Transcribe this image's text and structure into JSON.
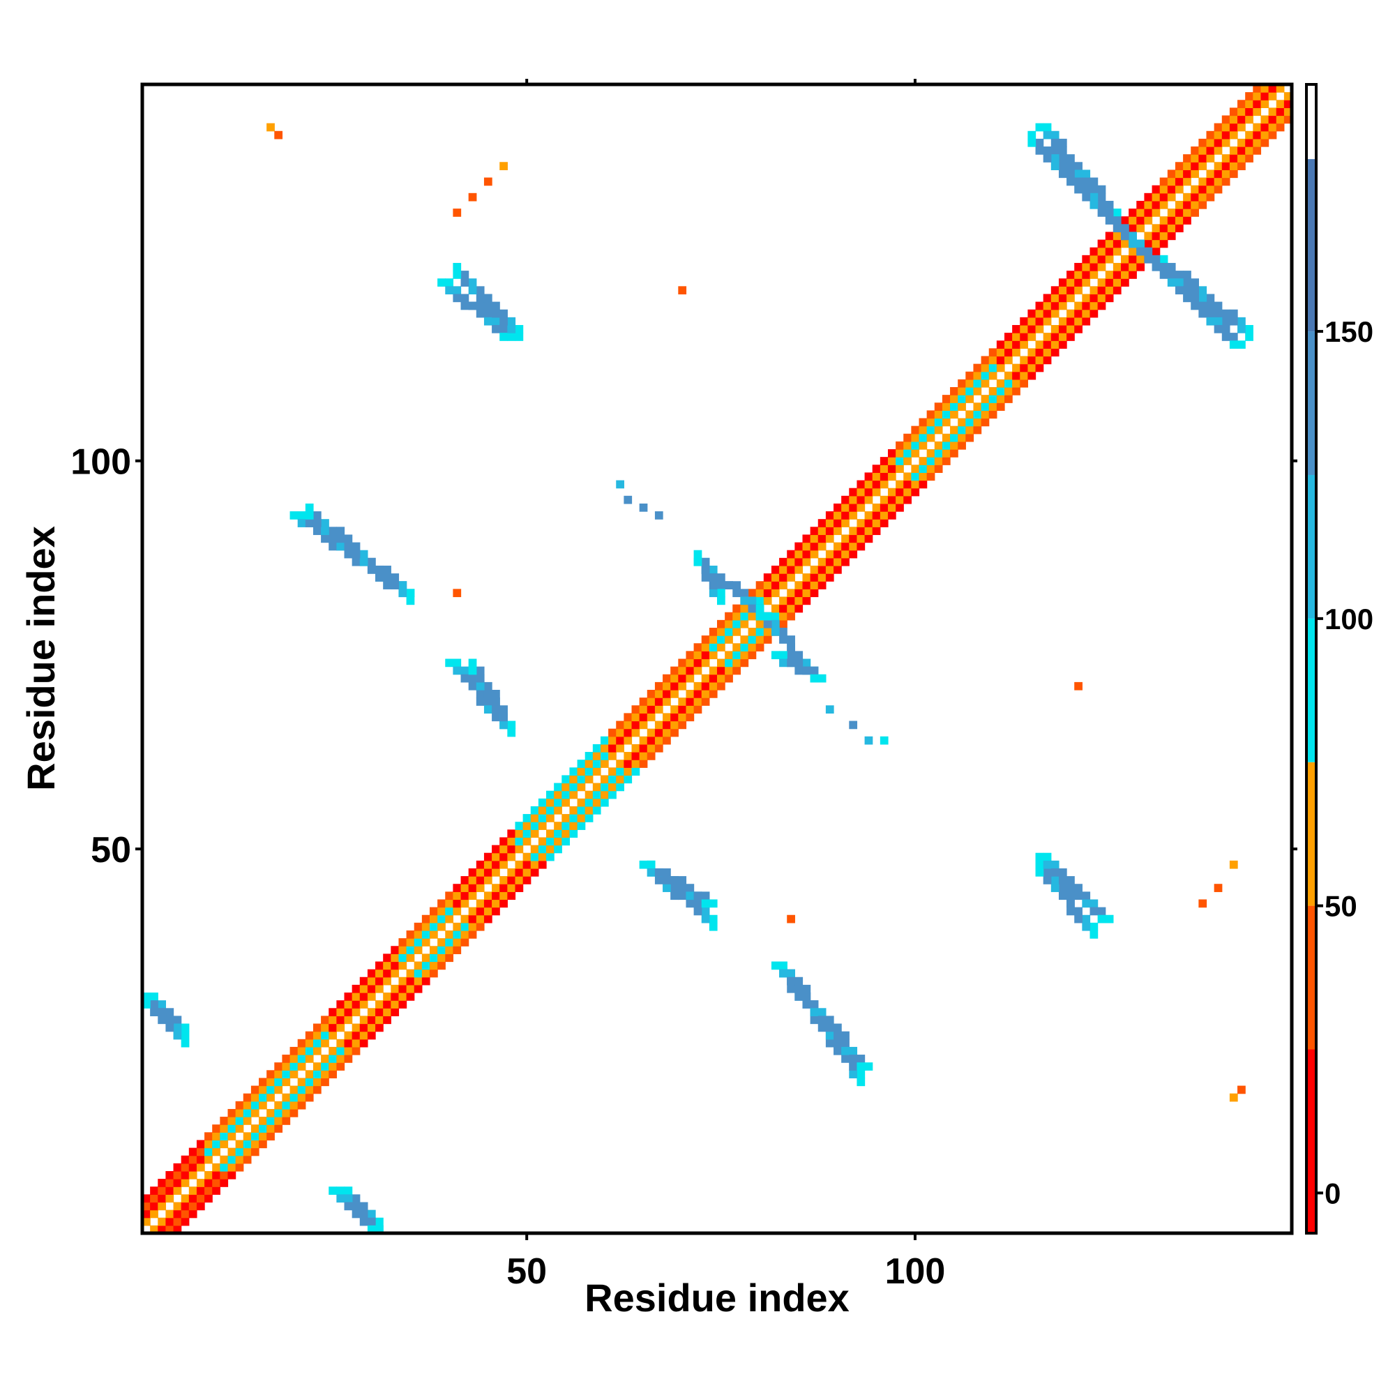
{
  "chart_data": {
    "type": "heatmap",
    "title": "",
    "xlabel": "Residue index",
    "ylabel": "Residue index",
    "x_ticks": [
      50,
      100
    ],
    "y_ticks": [
      50,
      100
    ],
    "xlim": [
      0.5,
      148.5
    ],
    "ylim": [
      0.5,
      148.5
    ],
    "colorbar": {
      "ticks": [
        0,
        50,
        100,
        150
      ],
      "range": [
        -7,
        193
      ],
      "bands": [
        {
          "from": -7,
          "to": 25,
          "color": "#ff0000"
        },
        {
          "from": 25,
          "to": 50,
          "color": "#ff5500"
        },
        {
          "from": 50,
          "to": 75,
          "color": "#ffa000"
        },
        {
          "from": 75,
          "to": 100,
          "color": "#00e5ee"
        },
        {
          "from": 100,
          "to": 125,
          "color": "#26b8e0"
        },
        {
          "from": 125,
          "to": 150,
          "color": "#4a90c8"
        },
        {
          "from": 150,
          "to": 180,
          "color": "#4a78b4"
        },
        {
          "from": 180,
          "to": 193,
          "color": "#ffffff"
        }
      ]
    },
    "colors": {
      "red": "#ff0000",
      "orangered": "#ff5500",
      "orange": "#ffa000",
      "cyan": "#00e5ee",
      "lightblue": "#26b8e0",
      "steelblue": "#4a90c8"
    },
    "diagonal_band": [
      {
        "offset": 1,
        "color": "orange"
      },
      {
        "offset": 2,
        "color": "red"
      },
      {
        "offset": 3,
        "color": "orange"
      },
      {
        "offset": 4,
        "color": "orangered"
      }
    ],
    "diagonal_segments": [
      {
        "from": 1,
        "to": 8,
        "offsets": [
          1,
          2,
          3,
          4
        ],
        "colors": [
          "orange",
          "red",
          "orangered",
          "red"
        ]
      },
      {
        "from": 9,
        "to": 24,
        "offsets": [
          1,
          2,
          3,
          4
        ],
        "colors": [
          "orange",
          "cyan",
          "orange",
          "orangered"
        ]
      },
      {
        "from": 25,
        "to": 33,
        "offsets": [
          1,
          2,
          3,
          4
        ],
        "colors": [
          "orange",
          "red",
          "orange",
          "red"
        ]
      },
      {
        "from": 34,
        "to": 40,
        "offsets": [
          1,
          2,
          3,
          4
        ],
        "colors": [
          "orange",
          "cyan",
          "orange",
          "orangered"
        ]
      },
      {
        "from": 41,
        "to": 48,
        "offsets": [
          1,
          2,
          3,
          4
        ],
        "colors": [
          "orange",
          "red",
          "orange",
          "red"
        ]
      },
      {
        "from": 49,
        "to": 60,
        "offsets": [
          1,
          2,
          3,
          4
        ],
        "colors": [
          "orange",
          "cyan",
          "orange",
          "cyan"
        ]
      },
      {
        "from": 61,
        "to": 73,
        "offsets": [
          1,
          2,
          3,
          4
        ],
        "colors": [
          "orange",
          "red",
          "orange",
          "orangered"
        ]
      },
      {
        "from": 74,
        "to": 80,
        "offsets": [
          1,
          2,
          3,
          4
        ],
        "colors": [
          "orange",
          "cyan",
          "orange",
          "orangered"
        ]
      },
      {
        "from": 81,
        "to": 97,
        "offsets": [
          1,
          2,
          3,
          4
        ],
        "colors": [
          "orange",
          "red",
          "orange",
          "red"
        ]
      },
      {
        "from": 98,
        "to": 110,
        "offsets": [
          1,
          2,
          3,
          4
        ],
        "colors": [
          "orange",
          "cyan",
          "orange",
          "orangered"
        ]
      },
      {
        "from": 111,
        "to": 131,
        "offsets": [
          1,
          2,
          3,
          4
        ],
        "colors": [
          "orange",
          "red",
          "orange",
          "red"
        ]
      },
      {
        "from": 132,
        "to": 148,
        "offsets": [
          1,
          2,
          3,
          4
        ],
        "colors": [
          "orange",
          "red",
          "orange",
          "orangered"
        ]
      }
    ],
    "strands": [
      {
        "x": [
          1,
          5
        ],
        "y": [
          31,
          27
        ],
        "width": 2,
        "color": "steelblue"
      },
      {
        "x": [
          25,
          30
        ],
        "y": [
          6,
          1
        ],
        "width": 2,
        "color": "steelblue"
      },
      {
        "x": [
          20,
          34
        ],
        "y": [
          93,
          83
        ],
        "width": 2,
        "color": "steelblue"
      },
      {
        "x": [
          39,
          47
        ],
        "y": [
          123,
          116
        ],
        "width": 2,
        "color": "steelblue"
      },
      {
        "x": [
          40,
          47
        ],
        "y": [
          74,
          66
        ],
        "width": 2,
        "color": "steelblue"
      },
      {
        "x": [
          65,
          73
        ],
        "y": [
          48,
          43
        ],
        "width": 2,
        "color": "steelblue"
      },
      {
        "x": [
          82,
          93
        ],
        "y": [
          35,
          22
        ],
        "width": 2,
        "color": "steelblue"
      },
      {
        "x": [
          72,
          80
        ],
        "y": [
          87,
          80
        ],
        "width": 2,
        "color": "steelblue"
      },
      {
        "x": [
          82,
          87
        ],
        "y": [
          75,
          72
        ],
        "width": 2,
        "color": "steelblue"
      },
      {
        "x": [
          116,
          125
        ],
        "y": [
          143,
          132
        ],
        "width": 2,
        "color": "steelblue"
      },
      {
        "x": [
          127,
          141
        ],
        "y": [
          129,
          115
        ],
        "width": 2,
        "color": "steelblue"
      },
      {
        "x": [
          116,
          124
        ],
        "y": [
          49,
          41
        ],
        "width": 2,
        "color": "steelblue"
      }
    ],
    "points": [
      {
        "x": 17,
        "y": 143,
        "color": "orange"
      },
      {
        "x": 18,
        "y": 142,
        "color": "orangered"
      },
      {
        "x": 47,
        "y": 138,
        "color": "orange"
      },
      {
        "x": 45,
        "y": 136,
        "color": "orangered"
      },
      {
        "x": 43,
        "y": 134,
        "color": "orangered"
      },
      {
        "x": 41,
        "y": 132,
        "color": "orangered"
      },
      {
        "x": 70,
        "y": 122,
        "color": "orangered"
      },
      {
        "x": 41,
        "y": 83,
        "color": "orangered"
      },
      {
        "x": 84,
        "y": 41,
        "color": "orangered"
      },
      {
        "x": 121,
        "y": 71,
        "color": "orangered"
      },
      {
        "x": 141,
        "y": 48,
        "color": "orange"
      },
      {
        "x": 139,
        "y": 45,
        "color": "orangered"
      },
      {
        "x": 137,
        "y": 43,
        "color": "orangered"
      },
      {
        "x": 141,
        "y": 18,
        "color": "orange"
      },
      {
        "x": 142,
        "y": 19,
        "color": "orangered"
      },
      {
        "x": 62,
        "y": 97,
        "color": "lightblue"
      },
      {
        "x": 63,
        "y": 95,
        "color": "steelblue"
      },
      {
        "x": 65,
        "y": 94,
        "color": "steelblue"
      },
      {
        "x": 67,
        "y": 93,
        "color": "steelblue"
      },
      {
        "x": 89,
        "y": 68,
        "color": "lightblue"
      },
      {
        "x": 92,
        "y": 66,
        "color": "steelblue"
      },
      {
        "x": 94,
        "y": 64,
        "color": "lightblue"
      },
      {
        "x": 96,
        "y": 64,
        "color": "cyan"
      }
    ]
  }
}
